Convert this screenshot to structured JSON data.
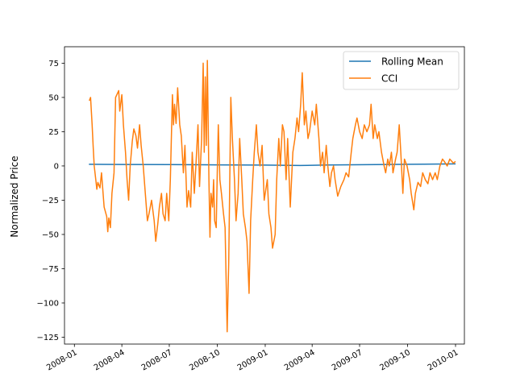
{
  "chart_data": {
    "type": "line",
    "title": "",
    "xlabel": "",
    "ylabel": "Normalized Price",
    "xlim": [
      "2007-12-13",
      "2010-01-18"
    ],
    "ylim": [
      -130,
      87
    ],
    "x_ticks": [
      "2008-01",
      "2008-04",
      "2008-07",
      "2008-10",
      "2009-01",
      "2009-04",
      "2009-07",
      "2009-10",
      "2010-01"
    ],
    "y_ticks": [
      75,
      50,
      25,
      0,
      -25,
      -50,
      -75,
      -100,
      -125
    ],
    "y_tick_labels": [
      "75",
      "50",
      "25",
      "0",
      "−25",
      "−50",
      "−75",
      "−100",
      "−125"
    ],
    "grid": false,
    "legend_position": "top-right",
    "series": [
      {
        "name": "Rolling Mean",
        "color": "#1f77b4",
        "points": [
          [
            "2008-01-30",
            1.2
          ],
          [
            "2008-04-01",
            1.1
          ],
          [
            "2008-07-01",
            1.0
          ],
          [
            "2008-10-01",
            0.8
          ],
          [
            "2009-01-02",
            0.6
          ],
          [
            "2009-03-09",
            0.3
          ],
          [
            "2009-05-01",
            0.7
          ],
          [
            "2009-08-01",
            1.0
          ],
          [
            "2009-11-01",
            1.3
          ],
          [
            "2009-12-31",
            1.5
          ]
        ]
      },
      {
        "name": "CCI",
        "color": "#ff7f0e",
        "points": [
          [
            "2008-01-30",
            48
          ],
          [
            "2008-02-01",
            50
          ],
          [
            "2008-02-04",
            30
          ],
          [
            "2008-02-06",
            14
          ],
          [
            "2008-02-08",
            0
          ],
          [
            "2008-02-11",
            -10
          ],
          [
            "2008-02-13",
            -17
          ],
          [
            "2008-02-15",
            -12
          ],
          [
            "2008-02-19",
            -16
          ],
          [
            "2008-02-22",
            -5
          ],
          [
            "2008-02-27",
            -30
          ],
          [
            "2008-03-03",
            -37
          ],
          [
            "2008-03-05",
            -48
          ],
          [
            "2008-03-07",
            -38
          ],
          [
            "2008-03-10",
            -45
          ],
          [
            "2008-03-13",
            -20
          ],
          [
            "2008-03-17",
            -5
          ],
          [
            "2008-03-20",
            50
          ],
          [
            "2008-03-26",
            55
          ],
          [
            "2008-03-28",
            40
          ],
          [
            "2008-04-01",
            52
          ],
          [
            "2008-04-04",
            30
          ],
          [
            "2008-04-08",
            10
          ],
          [
            "2008-04-11",
            -10
          ],
          [
            "2008-04-14",
            -25
          ],
          [
            "2008-04-17",
            0
          ],
          [
            "2008-04-21",
            18
          ],
          [
            "2008-04-24",
            27
          ],
          [
            "2008-04-28",
            22
          ],
          [
            "2008-05-01",
            13
          ],
          [
            "2008-05-05",
            30
          ],
          [
            "2008-05-08",
            15
          ],
          [
            "2008-05-12",
            0
          ],
          [
            "2008-05-16",
            -20
          ],
          [
            "2008-05-20",
            -40
          ],
          [
            "2008-05-23",
            -35
          ],
          [
            "2008-05-28",
            -25
          ],
          [
            "2008-06-02",
            -40
          ],
          [
            "2008-06-05",
            -55
          ],
          [
            "2008-06-09",
            -42
          ],
          [
            "2008-06-12",
            -30
          ],
          [
            "2008-06-16",
            -20
          ],
          [
            "2008-06-19",
            -35
          ],
          [
            "2008-06-23",
            -40
          ],
          [
            "2008-06-26",
            -20
          ],
          [
            "2008-06-30",
            -40
          ],
          [
            "2008-07-03",
            -10
          ],
          [
            "2008-07-07",
            52
          ],
          [
            "2008-07-09",
            30
          ],
          [
            "2008-07-11",
            45
          ],
          [
            "2008-07-14",
            31
          ],
          [
            "2008-07-17",
            57
          ],
          [
            "2008-07-21",
            30
          ],
          [
            "2008-07-24",
            22
          ],
          [
            "2008-07-28",
            -5
          ],
          [
            "2008-07-31",
            15
          ],
          [
            "2008-08-04",
            -30
          ],
          [
            "2008-08-07",
            -18
          ],
          [
            "2008-08-11",
            -30
          ],
          [
            "2008-08-14",
            10
          ],
          [
            "2008-08-18",
            -20
          ],
          [
            "2008-08-21",
            0
          ],
          [
            "2008-08-25",
            30
          ],
          [
            "2008-08-28",
            -15
          ],
          [
            "2008-09-01",
            20
          ],
          [
            "2008-09-04",
            75
          ],
          [
            "2008-09-06",
            10
          ],
          [
            "2008-09-08",
            65
          ],
          [
            "2008-09-10",
            15
          ],
          [
            "2008-09-12",
            77
          ],
          [
            "2008-09-15",
            -10
          ],
          [
            "2008-09-17",
            -52
          ],
          [
            "2008-09-19",
            -20
          ],
          [
            "2008-09-22",
            -30
          ],
          [
            "2008-09-24",
            -10
          ],
          [
            "2008-09-26",
            -40
          ],
          [
            "2008-09-29",
            -45
          ],
          [
            "2008-10-01",
            -5
          ],
          [
            "2008-10-03",
            30
          ],
          [
            "2008-10-06",
            -10
          ],
          [
            "2008-10-09",
            -20
          ],
          [
            "2008-10-13",
            -35
          ],
          [
            "2008-10-16",
            -45
          ],
          [
            "2008-10-20",
            -121
          ],
          [
            "2008-10-23",
            -70
          ],
          [
            "2008-10-27",
            50
          ],
          [
            "2008-10-30",
            20
          ],
          [
            "2008-11-03",
            -10
          ],
          [
            "2008-11-06",
            -40
          ],
          [
            "2008-11-10",
            -20
          ],
          [
            "2008-11-13",
            20
          ],
          [
            "2008-11-17",
            -10
          ],
          [
            "2008-11-20",
            -35
          ],
          [
            "2008-11-24",
            -45
          ],
          [
            "2008-11-27",
            -55
          ],
          [
            "2008-12-01",
            -93
          ],
          [
            "2008-12-04",
            -40
          ],
          [
            "2008-12-08",
            -10
          ],
          [
            "2008-12-11",
            10
          ],
          [
            "2008-12-15",
            30
          ],
          [
            "2008-12-18",
            10
          ],
          [
            "2008-12-22",
            0
          ],
          [
            "2008-12-26",
            15
          ],
          [
            "2008-12-30",
            -25
          ],
          [
            "2009-01-05",
            -10
          ],
          [
            "2009-01-08",
            -35
          ],
          [
            "2009-01-12",
            -45
          ],
          [
            "2009-01-15",
            -60
          ],
          [
            "2009-01-20",
            -50
          ],
          [
            "2009-01-23",
            -10
          ],
          [
            "2009-01-27",
            20
          ],
          [
            "2009-01-30",
            0
          ],
          [
            "2009-02-03",
            30
          ],
          [
            "2009-02-06",
            25
          ],
          [
            "2009-02-10",
            -10
          ],
          [
            "2009-02-13",
            20
          ],
          [
            "2009-02-18",
            -30
          ],
          [
            "2009-02-23",
            10
          ],
          [
            "2009-02-27",
            20
          ],
          [
            "2009-03-03",
            35
          ],
          [
            "2009-03-06",
            25
          ],
          [
            "2009-03-10",
            45
          ],
          [
            "2009-03-13",
            68
          ],
          [
            "2009-03-17",
            30
          ],
          [
            "2009-03-20",
            40
          ],
          [
            "2009-03-24",
            20
          ],
          [
            "2009-03-27",
            25
          ],
          [
            "2009-04-01",
            40
          ],
          [
            "2009-04-06",
            30
          ],
          [
            "2009-04-09",
            45
          ],
          [
            "2009-04-14",
            20
          ],
          [
            "2009-04-17",
            0
          ],
          [
            "2009-04-21",
            10
          ],
          [
            "2009-04-24",
            -5
          ],
          [
            "2009-04-28",
            15
          ],
          [
            "2009-05-01",
            0
          ],
          [
            "2009-05-05",
            -15
          ],
          [
            "2009-05-08",
            -5
          ],
          [
            "2009-05-12",
            0
          ],
          [
            "2009-05-15",
            -10
          ],
          [
            "2009-05-20",
            -22
          ],
          [
            "2009-05-26",
            -15
          ],
          [
            "2009-06-01",
            -10
          ],
          [
            "2009-06-05",
            -5
          ],
          [
            "2009-06-10",
            -8
          ],
          [
            "2009-06-15",
            10
          ],
          [
            "2009-06-18",
            20
          ],
          [
            "2009-06-23",
            30
          ],
          [
            "2009-06-26",
            35
          ],
          [
            "2009-07-01",
            25
          ],
          [
            "2009-07-06",
            20
          ],
          [
            "2009-07-10",
            30
          ],
          [
            "2009-07-15",
            25
          ],
          [
            "2009-07-20",
            30
          ],
          [
            "2009-07-23",
            45
          ],
          [
            "2009-07-27",
            20
          ],
          [
            "2009-07-30",
            30
          ],
          [
            "2009-08-04",
            20
          ],
          [
            "2009-08-07",
            25
          ],
          [
            "2009-08-12",
            10
          ],
          [
            "2009-08-17",
            0
          ],
          [
            "2009-08-20",
            -5
          ],
          [
            "2009-08-24",
            5
          ],
          [
            "2009-08-27",
            0
          ],
          [
            "2009-08-31",
            10
          ],
          [
            "2009-09-03",
            -5
          ],
          [
            "2009-09-08",
            5
          ],
          [
            "2009-09-11",
            10
          ],
          [
            "2009-09-15",
            30
          ],
          [
            "2009-09-18",
            10
          ],
          [
            "2009-09-22",
            -20
          ],
          [
            "2009-09-25",
            5
          ],
          [
            "2009-09-30",
            0
          ],
          [
            "2009-10-05",
            -10
          ],
          [
            "2009-10-08",
            -20
          ],
          [
            "2009-10-13",
            -32
          ],
          [
            "2009-10-16",
            -20
          ],
          [
            "2009-10-21",
            -12
          ],
          [
            "2009-10-26",
            -15
          ],
          [
            "2009-10-30",
            -5
          ],
          [
            "2009-11-04",
            -10
          ],
          [
            "2009-11-09",
            -13
          ],
          [
            "2009-11-13",
            -5
          ],
          [
            "2009-11-18",
            -10
          ],
          [
            "2009-11-23",
            -5
          ],
          [
            "2009-11-27",
            -10
          ],
          [
            "2009-12-02",
            0
          ],
          [
            "2009-12-07",
            5
          ],
          [
            "2009-12-11",
            3
          ],
          [
            "2009-12-16",
            0
          ],
          [
            "2009-12-21",
            5
          ],
          [
            "2009-12-28",
            2
          ],
          [
            "2009-12-31",
            3
          ]
        ]
      }
    ]
  }
}
